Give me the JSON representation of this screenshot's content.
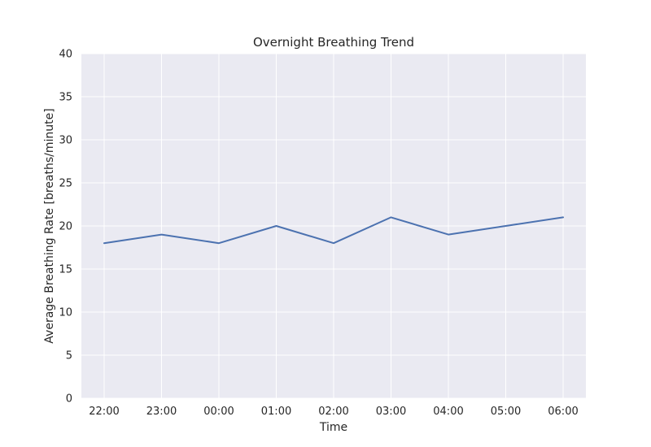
{
  "chart_data": {
    "type": "line",
    "title": "Overnight Breathing Trend",
    "xlabel": "Time",
    "ylabel": "Average Breathing Rate [breaths/minute]",
    "categories": [
      "22:00",
      "23:00",
      "00:00",
      "01:00",
      "02:00",
      "03:00",
      "04:00",
      "05:00",
      "06:00"
    ],
    "series": [
      {
        "values": [
          18,
          19,
          18,
          20,
          18,
          21,
          19,
          20,
          21
        ]
      }
    ],
    "ylim": [
      0,
      40
    ],
    "yticks": [
      0,
      5,
      10,
      15,
      20,
      25,
      30,
      35,
      40
    ],
    "grid": true,
    "colors": {
      "series": "#4c72b0",
      "background": "#eaeaf2",
      "grid": "#ffffff"
    }
  }
}
